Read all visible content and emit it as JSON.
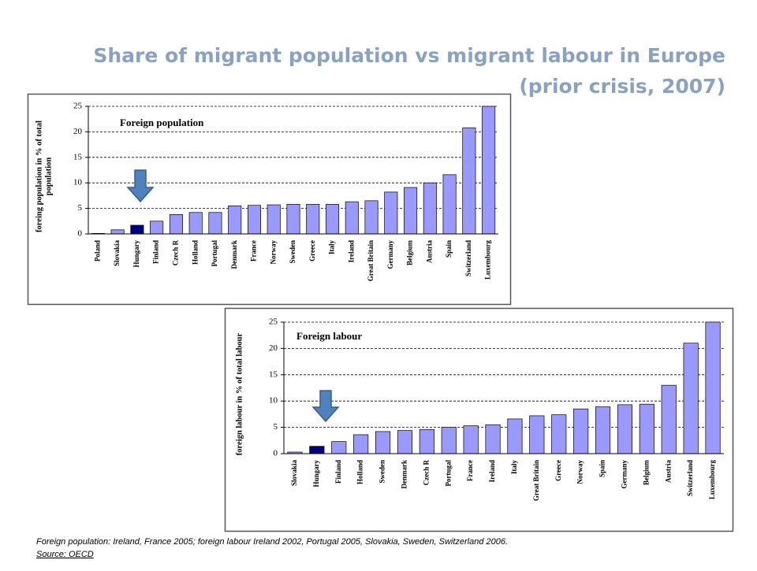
{
  "title": [
    "Share of migrant population vs migrant labour in Europe",
    "(prior crisis, 2007)"
  ],
  "footnote": "Foreign population: Ireland, France 2005; foreign labour Ireland 2002, Portugal 2005, Slovakia, Sweden, Switzerland 2006.",
  "source": "Source: OECD",
  "chart_data": [
    {
      "type": "bar",
      "title": "Foreign population",
      "ylabel": [
        "foreing population in % of total",
        "population"
      ],
      "categories": [
        "Poland",
        "Slovakia",
        "Hungary",
        "Finland",
        "Czech R",
        "Holland",
        "Portugal",
        "Denmark",
        "France",
        "Norway",
        "Sweden",
        "Greece",
        "Italy",
        "Ireland",
        "Great Britain",
        "Germany",
        "Belgium",
        "Austria",
        "Spain",
        "Switzerland",
        "Luxembourg"
      ],
      "values": [
        0.1,
        0.8,
        1.7,
        2.5,
        3.8,
        4.2,
        4.2,
        5.5,
        5.6,
        5.7,
        5.8,
        5.8,
        5.8,
        6.3,
        6.5,
        8.2,
        9.1,
        10,
        11.6,
        20.8,
        25
      ],
      "colors": [
        "#9999ff",
        "#9999ff",
        "#000080",
        "#9999ff",
        "#9999ff",
        "#9999ff",
        "#9999ff",
        "#9999ff",
        "#9999ff",
        "#9999ff",
        "#9999ff",
        "#9999ff",
        "#9999ff",
        "#9999ff",
        "#9999ff",
        "#9999ff",
        "#9999ff",
        "#9999ff",
        "#9999ff",
        "#9999ff",
        "#9999ff"
      ],
      "ylim": [
        0,
        25
      ],
      "yticks": [
        0,
        5,
        10,
        15,
        20,
        25
      ],
      "grid": true
    },
    {
      "type": "bar",
      "title": "Foreign labour",
      "ylabel": [
        "foreign labour in % of total labour"
      ],
      "categories": [
        "Slovakia",
        "Hungary",
        "Finland",
        "Holland",
        "Sweden",
        "Denmark",
        "Czech R",
        "Portugal",
        "France",
        "Ireland",
        "Italy",
        "Great Britain",
        "Greece",
        "Norway",
        "Spain",
        "Germany",
        "Belgium",
        "Austria",
        "Switzerland",
        "Luxembourg"
      ],
      "values": [
        0.3,
        1.4,
        2.3,
        3.6,
        4.2,
        4.4,
        4.6,
        5.0,
        5.3,
        5.5,
        6.6,
        7.2,
        7.4,
        8.5,
        8.9,
        9.3,
        9.4,
        13,
        21,
        25
      ],
      "colors": [
        "#9999ff",
        "#000080",
        "#9999ff",
        "#9999ff",
        "#9999ff",
        "#9999ff",
        "#9999ff",
        "#9999ff",
        "#9999ff",
        "#9999ff",
        "#9999ff",
        "#9999ff",
        "#9999ff",
        "#9999ff",
        "#9999ff",
        "#9999ff",
        "#9999ff",
        "#9999ff",
        "#9999ff",
        "#9999ff"
      ],
      "ylim": [
        0,
        25
      ],
      "yticks": [
        0,
        5,
        10,
        15,
        20,
        25
      ],
      "grid": true
    }
  ]
}
